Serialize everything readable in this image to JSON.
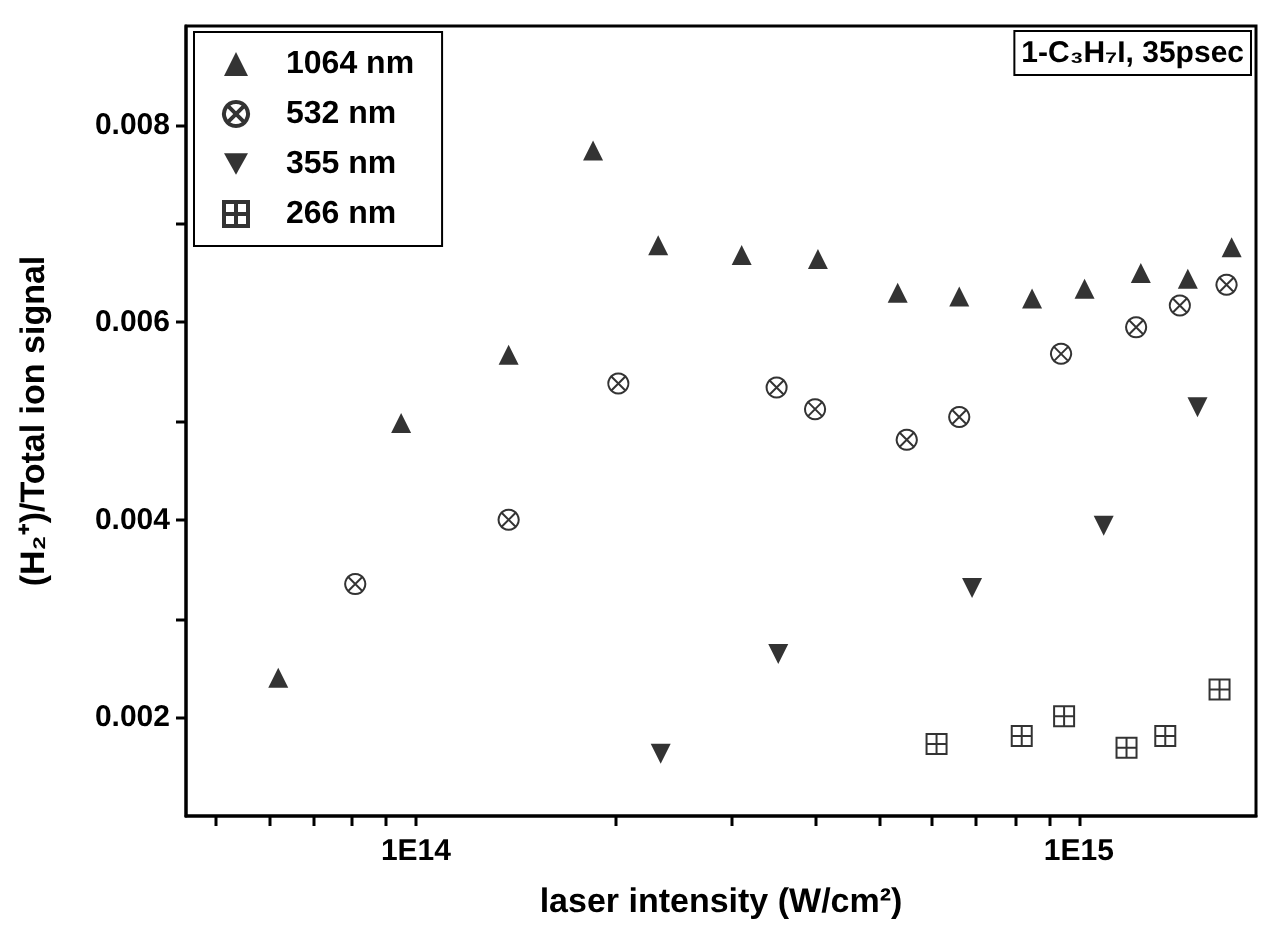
{
  "chart_data": {
    "type": "scatter",
    "xlabel": "laser intensity (W/cm²)",
    "ylabel": "(H₂⁺)/Total ion signal",
    "annotations": [
      "1-C₃H₇I, 35psec"
    ],
    "log": "x",
    "grid": false,
    "legend": "top left",
    "xlim": [
      45000000000000.0,
      1850000000000000.0
    ],
    "xticks": [
      {
        "value": 50000000000000.0,
        "label": null
      },
      {
        "value": 60000000000000.0,
        "label": null
      },
      {
        "value": 70000000000000.0,
        "label": null
      },
      {
        "value": 80000000000000.0,
        "label": null
      },
      {
        "value": 90000000000000.0,
        "label": null
      },
      {
        "value": 100000000000000.0,
        "label": "1E14"
      },
      {
        "value": 200000000000000.0,
        "label": null
      },
      {
        "value": 300000000000000.0,
        "label": null
      },
      {
        "value": 400000000000000.0,
        "label": null
      },
      {
        "value": 500000000000000.0,
        "label": null
      },
      {
        "value": 600000000000000.0,
        "label": null
      },
      {
        "value": 700000000000000.0,
        "label": null
      },
      {
        "value": 800000000000000.0,
        "label": null
      },
      {
        "value": 900000000000000.0,
        "label": null
      },
      {
        "value": 1000000000000000.0,
        "label": "1E15"
      }
    ],
    "ylim": [
      0.001,
      0.009
    ],
    "yticks": [
      {
        "value": 0.002,
        "label": "0.002"
      },
      {
        "value": 0.003,
        "label": null
      },
      {
        "value": 0.004,
        "label": "0.004"
      },
      {
        "value": 0.005,
        "label": null
      },
      {
        "value": 0.006,
        "label": "0.006"
      },
      {
        "value": 0.007,
        "label": null
      },
      {
        "value": 0.008,
        "label": "0.008"
      }
    ],
    "series": [
      {
        "name": "1064 nm",
        "color": "#000000",
        "marker": "triangle",
        "x": [
          62000000000000.0,
          95000000000000.0,
          138000000000000.0,
          185000000000000.0,
          232000000000000.0,
          310000000000000.0,
          404000000000000.0,
          533000000000000.0,
          660000000000000.0,
          850000000000000.0,
          1020000000000000.0,
          1240000000000000.0,
          1460000000000000.0,
          1700000000000000.0
        ],
        "values": [
          0.0024,
          0.00498,
          0.00567,
          0.00774,
          0.00678,
          0.00668,
          0.00664,
          0.0063,
          0.00626,
          0.00624,
          0.00634,
          0.0065,
          0.00644,
          0.00676
        ]
      },
      {
        "name": "532 nm",
        "color": "#000000",
        "marker": "cross",
        "x": [
          81000000000000.0,
          138000000000000.0,
          202000000000000.0,
          350000000000000.0,
          400000000000000.0,
          550000000000000.0,
          660000000000000.0,
          940000000000000.0,
          1220000000000000.0,
          1420000000000000.0,
          1670000000000000.0
        ],
        "values": [
          0.00335,
          0.004,
          0.00538,
          0.00534,
          0.00512,
          0.00481,
          0.00504,
          0.00568,
          0.00595,
          0.00617,
          0.00638
        ]
      },
      {
        "name": "355 nm",
        "color": "#000000",
        "marker": "triangle-down",
        "x": [
          234000000000000.0,
          352000000000000.0,
          690000000000000.0,
          1090000000000000.0,
          1510000000000000.0
        ],
        "values": [
          0.00163,
          0.00264,
          0.00331,
          0.00394,
          0.00514
        ]
      },
      {
        "name": "266 nm",
        "color": "#000000",
        "marker": "cross",
        "x": [
          610000000000000.0,
          820000000000000.0,
          950000000000000.0,
          1180000000000000.0,
          1350000000000000.0,
          1630000000000000.0
        ],
        "values": [
          0.00173,
          0.00181,
          0.00201,
          0.00169,
          0.00181,
          0.00228
        ]
      }
    ]
  }
}
